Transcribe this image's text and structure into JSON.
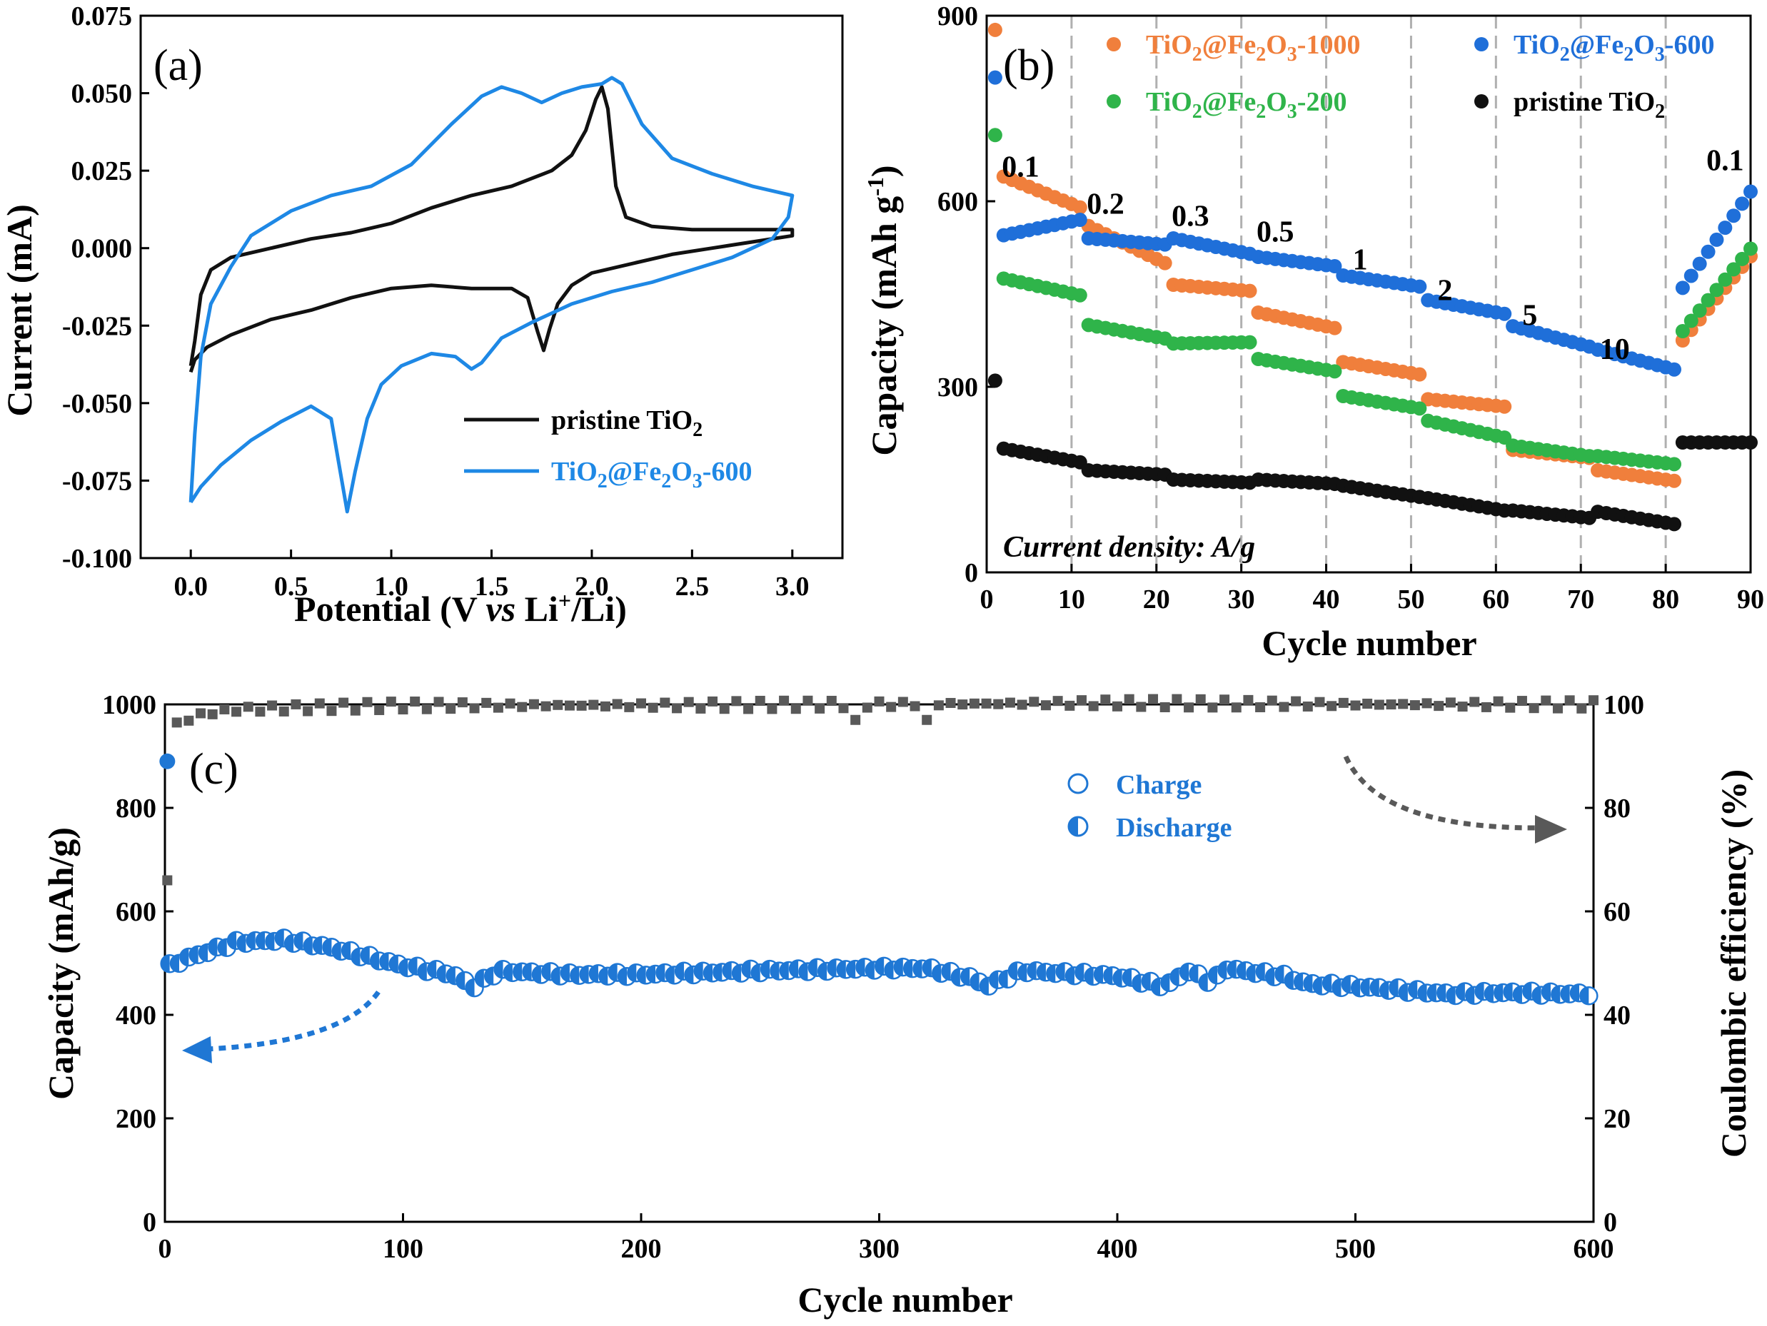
{
  "colors": {
    "pristine": "#111111",
    "fe1000": "#f07f3c",
    "fe600": "#1f6fd9",
    "fe200": "#2fb44a",
    "cv_blue": "#1e88e5",
    "ce_gray": "#595959",
    "cap_blue": "#1f77d4",
    "dashed": "#b0b0b0"
  },
  "chart_data": [
    {
      "id": "a",
      "type": "line",
      "panel_label": "(a)",
      "xlabel": "Potential (V vs Li+/Li)",
      "ylabel": "Current (mA)",
      "xlim": [
        -0.25,
        3.25
      ],
      "ylim": [
        -0.1,
        0.075
      ],
      "xticks": [
        0.0,
        0.5,
        1.0,
        1.5,
        2.0,
        2.5,
        3.0
      ],
      "xtick_labels": [
        "0.0",
        "0.5",
        "1.0",
        "1.5",
        "2.0",
        "2.5",
        "3.0"
      ],
      "yticks": [
        -0.1,
        -0.075,
        -0.05,
        -0.025,
        0.0,
        0.025,
        0.05,
        0.075
      ],
      "ytick_labels": [
        "-0.100",
        "-0.075",
        "-0.050",
        "-0.025",
        "0.000",
        "0.025",
        "0.050",
        "0.075"
      ],
      "legend": [
        {
          "name": "pristine TiO2",
          "color": "#111111"
        },
        {
          "name": "TiO2@Fe2O3-600",
          "color": "#1e88e5"
        }
      ],
      "series": [
        {
          "name": "pristine TiO2",
          "points": [
            [
              0.0,
              -0.038
            ],
            [
              0.02,
              -0.03
            ],
            [
              0.05,
              -0.015
            ],
            [
              0.1,
              -0.007
            ],
            [
              0.2,
              -0.003
            ],
            [
              0.4,
              0.0
            ],
            [
              0.6,
              0.003
            ],
            [
              0.8,
              0.005
            ],
            [
              1.0,
              0.008
            ],
            [
              1.2,
              0.013
            ],
            [
              1.4,
              0.017
            ],
            [
              1.6,
              0.02
            ],
            [
              1.8,
              0.025
            ],
            [
              1.9,
              0.03
            ],
            [
              1.97,
              0.038
            ],
            [
              2.02,
              0.048
            ],
            [
              2.05,
              0.052
            ],
            [
              2.08,
              0.045
            ],
            [
              2.12,
              0.02
            ],
            [
              2.17,
              0.01
            ],
            [
              2.3,
              0.007
            ],
            [
              2.5,
              0.006
            ],
            [
              2.7,
              0.006
            ],
            [
              2.9,
              0.006
            ],
            [
              3.0,
              0.006
            ],
            [
              3.0,
              0.004
            ],
            [
              2.8,
              0.002
            ],
            [
              2.6,
              0.0
            ],
            [
              2.4,
              -0.002
            ],
            [
              2.2,
              -0.005
            ],
            [
              2.0,
              -0.008
            ],
            [
              1.9,
              -0.012
            ],
            [
              1.83,
              -0.018
            ],
            [
              1.79,
              -0.026
            ],
            [
              1.76,
              -0.033
            ],
            [
              1.73,
              -0.027
            ],
            [
              1.68,
              -0.016
            ],
            [
              1.6,
              -0.013
            ],
            [
              1.4,
              -0.013
            ],
            [
              1.2,
              -0.012
            ],
            [
              1.0,
              -0.013
            ],
            [
              0.8,
              -0.016
            ],
            [
              0.6,
              -0.02
            ],
            [
              0.4,
              -0.023
            ],
            [
              0.2,
              -0.028
            ],
            [
              0.08,
              -0.032
            ],
            [
              0.02,
              -0.036
            ],
            [
              0.0,
              -0.04
            ]
          ]
        },
        {
          "name": "TiO2@Fe2O3-600",
          "points": [
            [
              0.0,
              -0.082
            ],
            [
              0.02,
              -0.06
            ],
            [
              0.05,
              -0.035
            ],
            [
              0.1,
              -0.018
            ],
            [
              0.2,
              -0.006
            ],
            [
              0.3,
              0.004
            ],
            [
              0.5,
              0.012
            ],
            [
              0.7,
              0.017
            ],
            [
              0.9,
              0.02
            ],
            [
              1.1,
              0.027
            ],
            [
              1.3,
              0.04
            ],
            [
              1.45,
              0.049
            ],
            [
              1.55,
              0.052
            ],
            [
              1.65,
              0.05
            ],
            [
              1.75,
              0.047
            ],
            [
              1.85,
              0.05
            ],
            [
              1.95,
              0.052
            ],
            [
              2.05,
              0.053
            ],
            [
              2.1,
              0.055
            ],
            [
              2.15,
              0.053
            ],
            [
              2.25,
              0.04
            ],
            [
              2.4,
              0.029
            ],
            [
              2.6,
              0.024
            ],
            [
              2.8,
              0.02
            ],
            [
              3.0,
              0.017
            ],
            [
              2.98,
              0.01
            ],
            [
              2.9,
              0.003
            ],
            [
              2.7,
              -0.003
            ],
            [
              2.5,
              -0.007
            ],
            [
              2.3,
              -0.011
            ],
            [
              2.1,
              -0.014
            ],
            [
              1.9,
              -0.018
            ],
            [
              1.7,
              -0.024
            ],
            [
              1.55,
              -0.029
            ],
            [
              1.45,
              -0.037
            ],
            [
              1.4,
              -0.039
            ],
            [
              1.32,
              -0.035
            ],
            [
              1.2,
              -0.034
            ],
            [
              1.05,
              -0.038
            ],
            [
              0.95,
              -0.044
            ],
            [
              0.88,
              -0.055
            ],
            [
              0.82,
              -0.072
            ],
            [
              0.78,
              -0.085
            ],
            [
              0.74,
              -0.07
            ],
            [
              0.7,
              -0.055
            ],
            [
              0.6,
              -0.051
            ],
            [
              0.45,
              -0.056
            ],
            [
              0.3,
              -0.062
            ],
            [
              0.15,
              -0.07
            ],
            [
              0.05,
              -0.077
            ],
            [
              0.0,
              -0.082
            ]
          ]
        }
      ]
    },
    {
      "id": "b",
      "type": "scatter",
      "panel_label": "(b)",
      "xlabel": "Cycle number",
      "ylabel": "Capacity (mAh g-1)",
      "xlim": [
        0,
        90
      ],
      "ylim": [
        0,
        900
      ],
      "xticks": [
        0,
        10,
        20,
        30,
        40,
        50,
        60,
        70,
        80,
        90
      ],
      "yticks": [
        0,
        300,
        600,
        900
      ],
      "dashed_x": [
        10,
        20,
        30,
        40,
        50,
        60,
        70,
        80
      ],
      "rate_labels": [
        "0.1",
        "0.2",
        "0.3",
        "0.5",
        "1",
        "2",
        "5",
        "10",
        "0.1"
      ],
      "annotation": "Current density: A/g",
      "legend": [
        {
          "name": "TiO2@Fe2O3-1000",
          "color": "#f07f3c"
        },
        {
          "name": "TiO2@Fe2O3-600",
          "color": "#1f6fd9"
        },
        {
          "name": "TiO2@Fe2O3-200",
          "color": "#2fb44a"
        },
        {
          "name": "pristine TiO2",
          "color": "#111111"
        }
      ],
      "series": [
        {
          "name": "TiO2@Fe2O3-1000",
          "first": 877,
          "segments": [
            [
              640,
              590
            ],
            [
              560,
              500
            ],
            [
              465,
              455
            ],
            [
              420,
              395
            ],
            [
              340,
              320
            ],
            [
              280,
              268
            ],
            [
              198,
              185
            ],
            [
              165,
              148
            ],
            [
              375,
              528
            ]
          ]
        },
        {
          "name": "TiO2@Fe2O3-600",
          "first": 800,
          "segments": [
            [
              545,
              570
            ],
            [
              540,
              530
            ],
            [
              540,
              515
            ],
            [
              510,
              495
            ],
            [
              480,
              462
            ],
            [
              440,
              418
            ],
            [
              398,
              365
            ],
            [
              360,
              328
            ],
            [
              460,
              635
            ]
          ]
        },
        {
          "name": "TiO2@Fe2O3-200",
          "first": 707,
          "segments": [
            [
              475,
              448
            ],
            [
              400,
              378
            ],
            [
              370,
              372
            ],
            [
              345,
              325
            ],
            [
              285,
              265
            ],
            [
              245,
              218
            ],
            [
              205,
              188
            ],
            [
              188,
              175
            ],
            [
              390,
              540
            ]
          ]
        },
        {
          "name": "pristine TiO2",
          "first": 310,
          "segments": [
            [
              200,
              178
            ],
            [
              165,
              158
            ],
            [
              150,
              145
            ],
            [
              150,
              143
            ],
            [
              140,
              122
            ],
            [
              120,
              100
            ],
            [
              100,
              88
            ],
            [
              98,
              78
            ],
            [
              210,
              210
            ]
          ]
        }
      ]
    },
    {
      "id": "c",
      "type": "scatter",
      "panel_label": "(c)",
      "xlabel": "Cycle number",
      "ylabel": "Capacity (mAh/g)",
      "y2label": "Coulombic efficiency (%)",
      "xlim": [
        0,
        600
      ],
      "ylim": [
        0,
        1000
      ],
      "y2lim": [
        0,
        100
      ],
      "xticks": [
        0,
        100,
        200,
        300,
        400,
        500,
        600
      ],
      "yticks": [
        0,
        200,
        400,
        600,
        800,
        1000
      ],
      "y2ticks": [
        0,
        20,
        40,
        60,
        80,
        100
      ],
      "legend": [
        {
          "name": "Charge",
          "color": "#1f77d4"
        },
        {
          "name": "Discharge",
          "color": "#1f77d4"
        }
      ],
      "capacity_first": 890,
      "capacity_profile": [
        [
          2,
          495
        ],
        [
          10,
          510
        ],
        [
          30,
          540
        ],
        [
          50,
          545
        ],
        [
          70,
          530
        ],
        [
          100,
          495
        ],
        [
          120,
          480
        ],
        [
          130,
          455
        ],
        [
          140,
          485
        ],
        [
          170,
          478
        ],
        [
          200,
          478
        ],
        [
          250,
          485
        ],
        [
          300,
          490
        ],
        [
          320,
          490
        ],
        [
          340,
          470
        ],
        [
          345,
          455
        ],
        [
          360,
          485
        ],
        [
          400,
          475
        ],
        [
          420,
          455
        ],
        [
          430,
          485
        ],
        [
          440,
          462
        ],
        [
          445,
          490
        ],
        [
          470,
          475
        ],
        [
          480,
          460
        ],
        [
          500,
          455
        ],
        [
          520,
          448
        ],
        [
          540,
          440
        ],
        [
          560,
          443
        ],
        [
          600,
          440
        ]
      ],
      "ce_first": 66,
      "ce_profile": [
        [
          6,
          96
        ],
        [
          14,
          98
        ],
        [
          30,
          99
        ],
        [
          60,
          99.4
        ],
        [
          100,
          99.8
        ],
        [
          200,
          99.8
        ],
        [
          300,
          100
        ],
        [
          400,
          100.3
        ],
        [
          500,
          100
        ],
        [
          600,
          100
        ]
      ],
      "ce_outliers": [
        [
          5,
          96.5
        ],
        [
          290,
          102
        ],
        [
          292,
          97
        ],
        [
          320,
          97
        ]
      ]
    }
  ]
}
